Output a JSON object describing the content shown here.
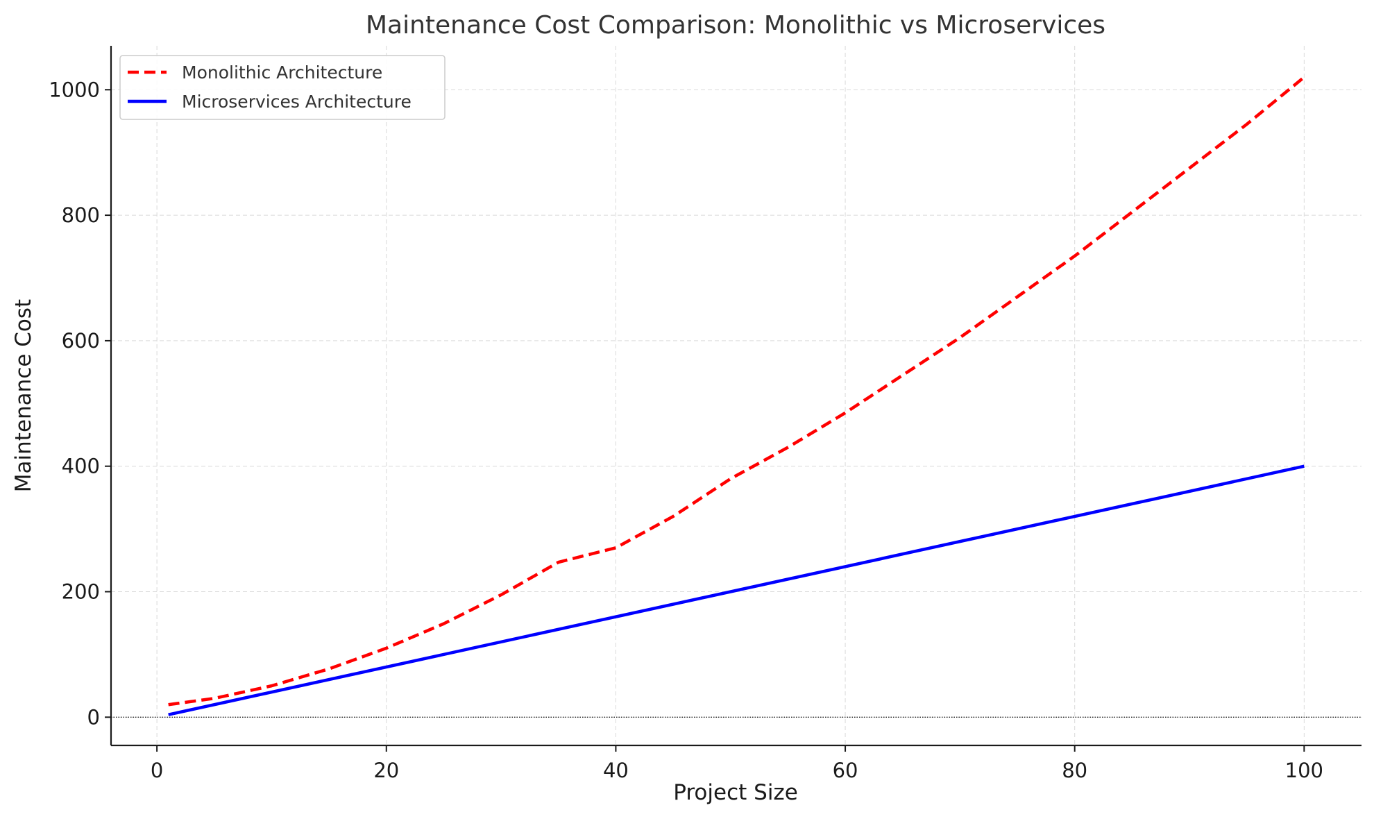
{
  "chart_data": {
    "type": "line",
    "title": "Maintenance Cost Comparison: Monolithic vs Microservices",
    "xlabel": "Project Size",
    "ylabel": "Maintenance Cost",
    "xlim": [
      -4,
      105
    ],
    "ylim": [
      -45,
      1070
    ],
    "xticks": [
      0,
      20,
      40,
      60,
      80,
      100
    ],
    "yticks": [
      0,
      200,
      400,
      600,
      800,
      1000
    ],
    "grid": true,
    "legend_position": "top-left",
    "zero_reference_line": true,
    "series": [
      {
        "name": "Monolithic Architecture",
        "color": "#ff0000",
        "style": "dashed",
        "x": [
          1,
          5,
          10,
          15,
          20,
          25,
          30,
          35,
          40,
          45,
          50,
          55,
          60,
          65,
          70,
          75,
          80,
          85,
          90,
          95,
          100
        ],
        "y": [
          20,
          30,
          50,
          77,
          110,
          149,
          195,
          247,
          270,
          320,
          380,
          430,
          485,
          545,
          605,
          670,
          735,
          805,
          875,
          945,
          1020
        ]
      },
      {
        "name": "Microservices Architecture",
        "color": "#0000ff",
        "style": "solid",
        "x": [
          1,
          100
        ],
        "y": [
          4,
          400
        ]
      }
    ]
  }
}
